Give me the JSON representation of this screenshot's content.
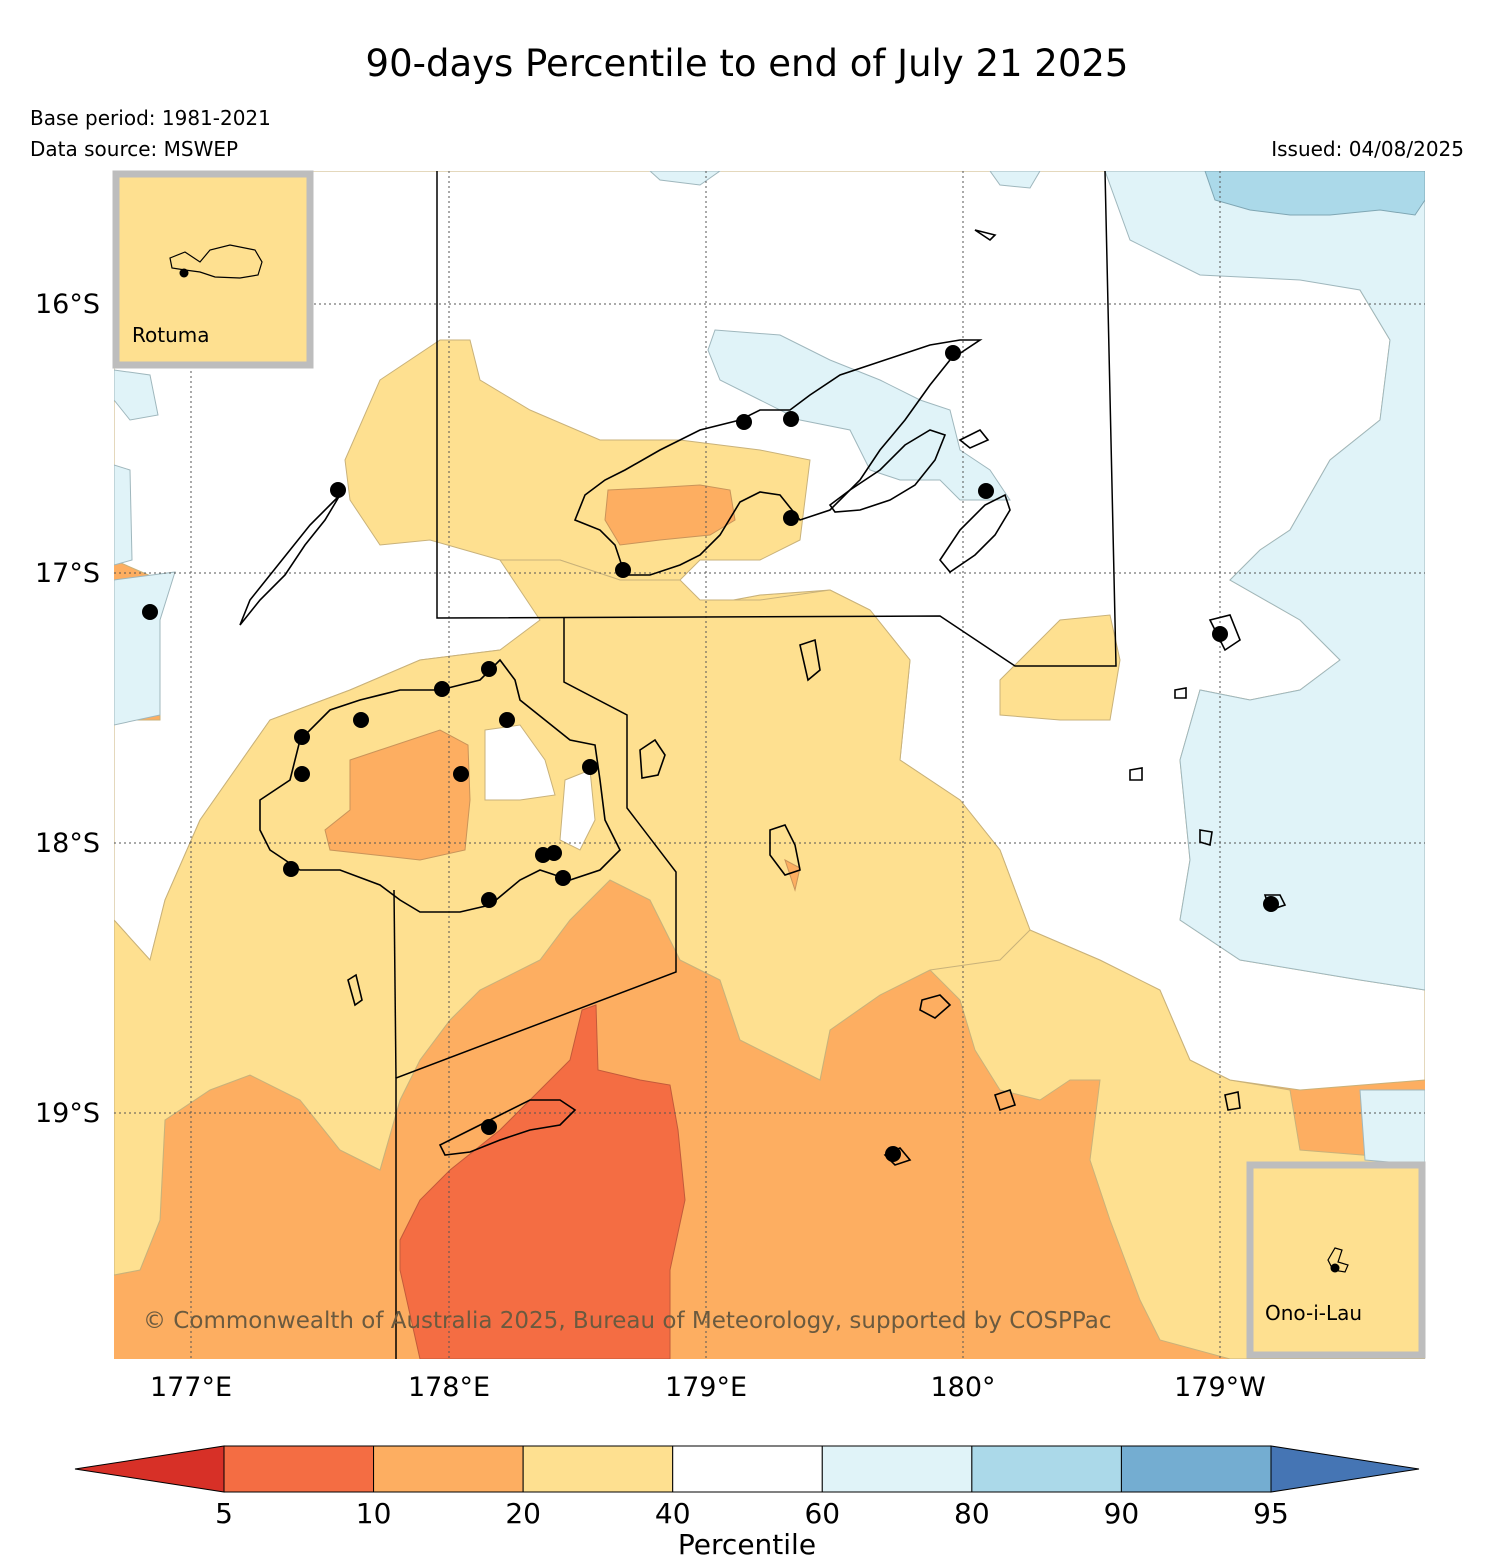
{
  "title": "90-days Percentile to end of July 21 2025",
  "base_period": "Base period: 1981-2021",
  "data_source": "Data source: MSWEP",
  "issued": "Issued: 04/08/2025",
  "copyright": "© Commonwealth of Australia 2025, Bureau of Meteorology, supported by COSPPac",
  "insets": [
    {
      "label": "Rotuma"
    },
    {
      "label": "Ono-i-Lau"
    }
  ],
  "lat_labels": [
    "16°S",
    "17°S",
    "18°S",
    "19°S"
  ],
  "lon_labels": [
    "177°E",
    "178°E",
    "179°E",
    "180°",
    "179°W"
  ],
  "colorbar": {
    "label": "Percentile",
    "ticks": [
      "5",
      "10",
      "20",
      "40",
      "60",
      "80",
      "90",
      "95"
    ],
    "colors": [
      "#d73027",
      "#f46d43",
      "#fdae61",
      "#fee090",
      "#ffffff",
      "#e0f3f8",
      "#abd9e9",
      "#74add1",
      "#4575b4"
    ]
  },
  "colors": {
    "p10_20": "#fdae61",
    "p5_10": "#f46d43",
    "p20_40": "#fee090",
    "p40_60": "#ffffff",
    "p60_80": "#e0f3f8",
    "p80_90": "#abd9e9"
  }
}
